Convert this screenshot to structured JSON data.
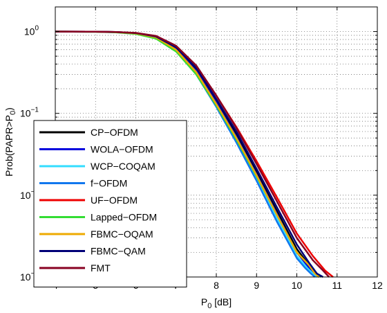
{
  "chart_data": {
    "type": "line",
    "xlabel": "P",
    "xlabel_sub": "0",
    "xlabel_suffix": " [dB]",
    "ylabel": "Prob(PAPR>P",
    "ylabel_sub": "0",
    "ylabel_suffix": ")",
    "xlim": [
      4,
      12
    ],
    "ylim": [
      0.001,
      2
    ],
    "yscale": "log",
    "grid": "dotted",
    "legend_position": "bottom-left",
    "x_ticks": [
      "4",
      "5",
      "6",
      "7",
      "8",
      "9",
      "10",
      "11",
      "12"
    ],
    "y_ticks": [
      {
        "value": 1,
        "base": "10",
        "exp": "0"
      },
      {
        "value": 0.1,
        "base": "10",
        "exp": "−1"
      },
      {
        "value": 0.01,
        "base": "10",
        "exp": "−2"
      },
      {
        "value": 0.001,
        "base": "10",
        "exp": "−3"
      }
    ],
    "series": [
      {
        "name": "CP−OFDM",
        "color": "#000000",
        "x": [
          4,
          5,
          5.5,
          6,
          6.5,
          7,
          7.5,
          8,
          8.5,
          9,
          9.5,
          10,
          10.3,
          10.45,
          10.55
        ],
        "y": [
          1,
          0.995,
          0.985,
          0.955,
          0.86,
          0.62,
          0.34,
          0.14,
          0.055,
          0.019,
          0.0065,
          0.0022,
          0.0014,
          0.0011,
          0.001
        ]
      },
      {
        "name": "WOLA−OFDM",
        "color": "#0000dd",
        "x": [
          4,
          5,
          5.5,
          6,
          6.5,
          7,
          7.5,
          8,
          8.5,
          9,
          9.5,
          10,
          10.3,
          10.45,
          10.55
        ],
        "y": [
          1,
          0.995,
          0.984,
          0.952,
          0.855,
          0.61,
          0.33,
          0.135,
          0.052,
          0.018,
          0.006,
          0.002,
          0.0013,
          0.0011,
          0.001
        ]
      },
      {
        "name": "WCP−COQAM",
        "color": "#33ddff",
        "x": [
          4,
          5,
          5.5,
          6,
          6.5,
          7,
          7.5,
          8,
          8.5,
          9,
          9.5,
          10,
          10.25,
          10.4,
          10.5
        ],
        "y": [
          1,
          0.994,
          0.982,
          0.948,
          0.84,
          0.59,
          0.31,
          0.125,
          0.047,
          0.016,
          0.0052,
          0.0018,
          0.0013,
          0.0011,
          0.001
        ]
      },
      {
        "name": "f−OFDM",
        "color": "#1177ee",
        "x": [
          4,
          5,
          5.5,
          6,
          6.5,
          7,
          7.5,
          8,
          8.5,
          9,
          9.5,
          10,
          10.2,
          10.35,
          10.45
        ],
        "y": [
          1,
          0.994,
          0.981,
          0.945,
          0.835,
          0.58,
          0.3,
          0.12,
          0.044,
          0.015,
          0.0048,
          0.0017,
          0.0013,
          0.0011,
          0.001
        ]
      },
      {
        "name": "UF−OFDM",
        "color": "#ee0000",
        "x": [
          4,
          5,
          5.5,
          6,
          6.5,
          7,
          7.5,
          8,
          8.5,
          9,
          9.5,
          10,
          10.4,
          10.7,
          10.9
        ],
        "y": [
          1,
          0.996,
          0.988,
          0.962,
          0.88,
          0.66,
          0.38,
          0.165,
          0.068,
          0.026,
          0.0095,
          0.0034,
          0.0018,
          0.0012,
          0.001
        ]
      },
      {
        "name": "Lapped−OFDM",
        "color": "#33dd33",
        "x": [
          4,
          5,
          5.5,
          6,
          6.5,
          7,
          7.5,
          8,
          8.5,
          9,
          9.5,
          10,
          10.3,
          10.5,
          10.6
        ],
        "y": [
          1,
          0.993,
          0.978,
          0.935,
          0.82,
          0.57,
          0.3,
          0.125,
          0.048,
          0.017,
          0.0058,
          0.002,
          0.0014,
          0.0011,
          0.001
        ]
      },
      {
        "name": "FBMC−OQAM",
        "color": "#eeaa00",
        "x": [
          4,
          5,
          5.5,
          6,
          6.5,
          7,
          7.5,
          8,
          8.5,
          9,
          9.5,
          10,
          10.3,
          10.45,
          10.55
        ],
        "y": [
          1,
          0.994,
          0.983,
          0.95,
          0.85,
          0.6,
          0.32,
          0.13,
          0.05,
          0.0175,
          0.0058,
          0.002,
          0.0014,
          0.0011,
          0.001
        ]
      },
      {
        "name": "FBMC−QAM",
        "color": "#000077",
        "x": [
          4,
          5,
          5.5,
          6,
          6.5,
          7,
          7.5,
          8,
          8.5,
          9,
          9.5,
          10,
          10.3,
          10.5,
          10.65
        ],
        "y": [
          1,
          0.996,
          0.987,
          0.96,
          0.87,
          0.64,
          0.36,
          0.15,
          0.06,
          0.021,
          0.0072,
          0.0025,
          0.0015,
          0.0011,
          0.001
        ]
      },
      {
        "name": "FMT",
        "color": "#880022",
        "x": [
          4,
          5,
          5.5,
          6,
          6.5,
          7,
          7.5,
          8,
          8.5,
          9,
          9.5,
          10,
          10.4,
          10.65,
          10.8
        ],
        "y": [
          1,
          0.996,
          0.988,
          0.963,
          0.885,
          0.67,
          0.385,
          0.165,
          0.066,
          0.024,
          0.0085,
          0.003,
          0.0016,
          0.0012,
          0.001
        ]
      }
    ]
  }
}
